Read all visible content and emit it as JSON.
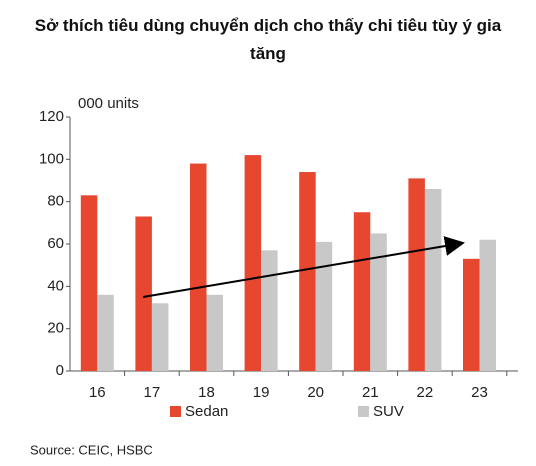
{
  "chart_data": {
    "type": "bar",
    "title": "Sở thích tiêu dùng chuyển dịch cho thấy chi tiêu tùy ý gia tăng",
    "y_label": "000 units",
    "source": "Source: CEIC, HSBC",
    "categories": [
      "16",
      "17",
      "18",
      "19",
      "20",
      "21",
      "22",
      "23"
    ],
    "series": [
      {
        "name": "Sedan",
        "color": "#e8472f",
        "values": [
          83,
          73,
          98,
          102,
          94,
          75,
          91,
          53
        ]
      },
      {
        "name": "SUV",
        "color": "#c8c8c8",
        "values": [
          36,
          32,
          36,
          57,
          61,
          65,
          86,
          62
        ]
      }
    ],
    "ylim": [
      0,
      120
    ],
    "yticks": [
      0,
      20,
      40,
      60,
      80,
      100,
      120
    ]
  }
}
